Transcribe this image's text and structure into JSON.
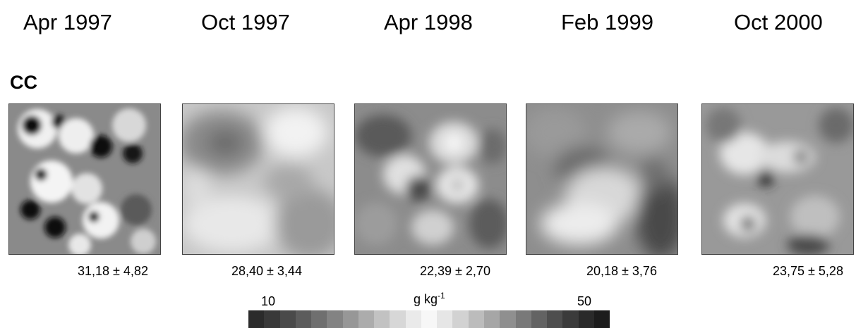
{
  "dates": [
    "Apr 1997",
    "Oct 1997",
    "Apr 1998",
    "Feb 1999",
    "Oct 2000"
  ],
  "group_label": "CC",
  "stats": [
    "31,18 ± 4,82",
    "28,40 ± 3,44",
    "22,39 ± 2,70",
    "20,18 ± 3,76",
    "23,75 ± 5,28"
  ],
  "legend": {
    "min": "10",
    "max": "50",
    "unit_base": "g kg",
    "unit_exp": "-1",
    "steps": [
      "#2b2b2b",
      "#393939",
      "#4a4a4a",
      "#5c5c5c",
      "#6f6f6f",
      "#838383",
      "#979797",
      "#acacac",
      "#c2c2c2",
      "#d7d7d7",
      "#eaeaea",
      "#f7f7f7",
      "#e6e6e6",
      "#d2d2d2",
      "#bcbcbc",
      "#a6a6a6",
      "#8f8f8f",
      "#797979",
      "#636363",
      "#4e4e4e",
      "#3b3b3b",
      "#2a2a2a",
      "#1c1c1c"
    ]
  }
}
